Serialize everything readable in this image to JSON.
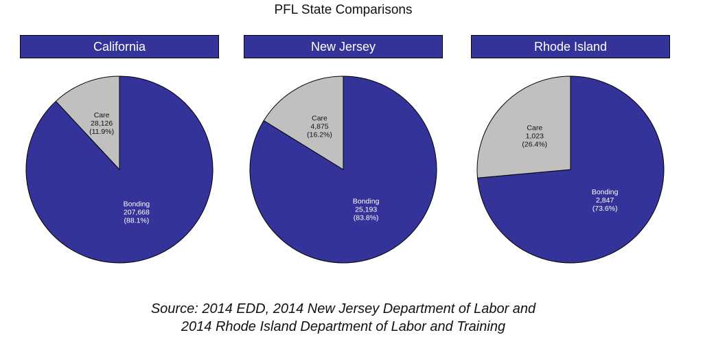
{
  "title": "PFL State Comparisons",
  "source": {
    "line1": "Source: 2014 EDD, 2014 New Jersey Department of Labor and",
    "line2": "2014 Rhode Island Department of Labor and Training"
  },
  "colors": {
    "header": "#333399",
    "bonding": "#333399",
    "care": "#c0c0c0",
    "bonding_text": "#ffffff",
    "care_text": "#111111"
  },
  "chart_data": [
    {
      "type": "pie",
      "title": "California",
      "slices": [
        {
          "label": "Care",
          "value": 28126,
          "value_text": "28,126",
          "pct_text": "(11.9%)"
        },
        {
          "label": "Bonding",
          "value": 207668,
          "value_text": "207,668",
          "pct_text": "(88.1%)"
        }
      ]
    },
    {
      "type": "pie",
      "title": "New Jersey",
      "slices": [
        {
          "label": "Care",
          "value": 4875,
          "value_text": "4,875",
          "pct_text": "(16.2%)"
        },
        {
          "label": "Bonding",
          "value": 25193,
          "value_text": "25,193",
          "pct_text": "(83.8%)"
        }
      ]
    },
    {
      "type": "pie",
      "title": "Rhode Island",
      "slices": [
        {
          "label": "Care",
          "value": 1023,
          "value_text": "1,023",
          "pct_text": "(26.4%)"
        },
        {
          "label": "Bonding",
          "value": 2847,
          "value_text": "2,847",
          "pct_text": "(73.6%)"
        }
      ]
    }
  ]
}
